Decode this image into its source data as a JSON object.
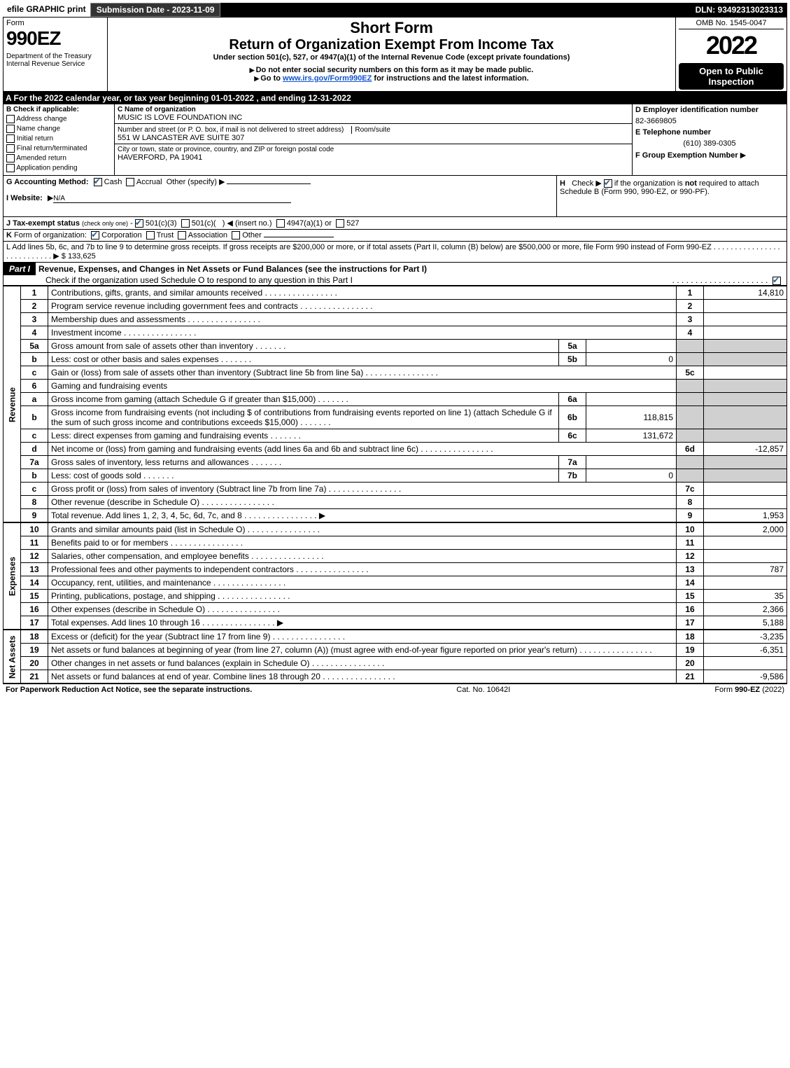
{
  "topbar": {
    "efile": "efile GRAPHIC print",
    "subdate": "Submission Date - 2023-11-09",
    "dln": "DLN: 93492313023313"
  },
  "header": {
    "form_word": "Form",
    "form_num": "990EZ",
    "dept": "Department of the Treasury\nInternal Revenue Service",
    "short_form": "Short Form",
    "title": "Return of Organization Exempt From Income Tax",
    "subtitle": "Under section 501(c), 527, or 4947(a)(1) of the Internal Revenue Code (except private foundations)",
    "notice1": "Do not enter social security numbers on this form as it may be made public.",
    "notice2": "Go to www.irs.gov/Form990EZ for instructions and the latest information.",
    "omb": "OMB No. 1545-0047",
    "year": "2022",
    "inspection": "Open to Public Inspection"
  },
  "sectionA": "A  For the 2022 calendar year, or tax year beginning 01-01-2022 , and ending 12-31-2022",
  "colB": {
    "label": "B  Check if applicable:",
    "items": [
      "Address change",
      "Name change",
      "Initial return",
      "Final return/terminated",
      "Amended return",
      "Application pending"
    ]
  },
  "colC": {
    "name_label": "C Name of organization",
    "name": "MUSIC IS LOVE FOUNDATION INC",
    "street_label": "Number and street (or P. O. box, if mail is not delivered to street address)",
    "room_label": "Room/suite",
    "street": "551 W LANCASTER AVE SUITE 307",
    "city_label": "City or town, state or province, country, and ZIP or foreign postal code",
    "city": "HAVERFORD, PA  19041"
  },
  "colD": {
    "ein_label": "D Employer identification number",
    "ein": "82-3669805",
    "tel_label": "E Telephone number",
    "tel": "(610) 389-0305",
    "group_label": "F Group Exemption Number"
  },
  "lineG": {
    "label": "G Accounting Method:",
    "cash": "Cash",
    "accrual": "Accrual",
    "other": "Other (specify)"
  },
  "lineH": "H   Check ▶     if the organization is not required to attach Schedule B (Form 990, 990-EZ, or 990-PF).",
  "lineI": {
    "label": "I Website:",
    "value": "N/A"
  },
  "lineJ": "J Tax-exempt status (check only one) -    501(c)(3)    501(c)(  ) ◀ (insert no.)    4947(a)(1) or    527",
  "lineK": "K Form of organization:    Corporation    Trust    Association    Other",
  "lineL": {
    "text": "L Add lines 5b, 6c, and 7b to line 9 to determine gross receipts. If gross receipts are $200,000 or more, or if total assets (Part II, column (B) below) are $500,000 or more, file Form 990 instead of Form 990-EZ",
    "value": "$ 133,625"
  },
  "partI": {
    "label": "Part I",
    "title": "Revenue, Expenses, and Changes in Net Assets or Fund Balances (see the instructions for Part I)",
    "check_o": "Check if the organization used Schedule O to respond to any question in this Part I"
  },
  "rows": [
    {
      "n": "1",
      "desc": "Contributions, gifts, grants, and similar amounts received",
      "rn": "1",
      "rv": "14,810"
    },
    {
      "n": "2",
      "desc": "Program service revenue including government fees and contracts",
      "rn": "2",
      "rv": ""
    },
    {
      "n": "3",
      "desc": "Membership dues and assessments",
      "rn": "3",
      "rv": ""
    },
    {
      "n": "4",
      "desc": "Investment income",
      "rn": "4",
      "rv": ""
    },
    {
      "n": "5a",
      "desc": "Gross amount from sale of assets other than inventory",
      "sl": "5a",
      "sv": "",
      "shaded": true
    },
    {
      "n": "b",
      "desc": "Less: cost or other basis and sales expenses",
      "sl": "5b",
      "sv": "0",
      "shaded": true
    },
    {
      "n": "c",
      "desc": "Gain or (loss) from sale of assets other than inventory (Subtract line 5b from line 5a)",
      "rn": "5c",
      "rv": ""
    },
    {
      "n": "6",
      "desc": "Gaming and fundraising events",
      "shaded": true
    },
    {
      "n": "a",
      "desc": "Gross income from gaming (attach Schedule G if greater than $15,000)",
      "sl": "6a",
      "sv": "",
      "shaded": true
    },
    {
      "n": "b",
      "desc": "Gross income from fundraising events (not including $                             of contributions from fundraising events reported on line 1) (attach Schedule G if the sum of such gross income and contributions exceeds $15,000)",
      "sl": "6b",
      "sv": "118,815",
      "shaded": true
    },
    {
      "n": "c",
      "desc": "Less: direct expenses from gaming and fundraising events",
      "sl": "6c",
      "sv": "131,672",
      "shaded": true
    },
    {
      "n": "d",
      "desc": "Net income or (loss) from gaming and fundraising events (add lines 6a and 6b and subtract line 6c)",
      "rn": "6d",
      "rv": "-12,857"
    },
    {
      "n": "7a",
      "desc": "Gross sales of inventory, less returns and allowances",
      "sl": "7a",
      "sv": "",
      "shaded": true
    },
    {
      "n": "b",
      "desc": "Less: cost of goods sold",
      "sl": "7b",
      "sv": "0",
      "shaded": true
    },
    {
      "n": "c",
      "desc": "Gross profit or (loss) from sales of inventory (Subtract line 7b from line 7a)",
      "rn": "7c",
      "rv": ""
    },
    {
      "n": "8",
      "desc": "Other revenue (describe in Schedule O)",
      "rn": "8",
      "rv": ""
    },
    {
      "n": "9",
      "desc": "Total revenue. Add lines 1, 2, 3, 4, 5c, 6d, 7c, and 8",
      "rn": "9",
      "rv": "1,953",
      "bold": true,
      "arrow": true
    }
  ],
  "exp_rows": [
    {
      "n": "10",
      "desc": "Grants and similar amounts paid (list in Schedule O)",
      "rn": "10",
      "rv": "2,000"
    },
    {
      "n": "11",
      "desc": "Benefits paid to or for members",
      "rn": "11",
      "rv": ""
    },
    {
      "n": "12",
      "desc": "Salaries, other compensation, and employee benefits",
      "rn": "12",
      "rv": ""
    },
    {
      "n": "13",
      "desc": "Professional fees and other payments to independent contractors",
      "rn": "13",
      "rv": "787"
    },
    {
      "n": "14",
      "desc": "Occupancy, rent, utilities, and maintenance",
      "rn": "14",
      "rv": ""
    },
    {
      "n": "15",
      "desc": "Printing, publications, postage, and shipping",
      "rn": "15",
      "rv": "35"
    },
    {
      "n": "16",
      "desc": "Other expenses (describe in Schedule O)",
      "rn": "16",
      "rv": "2,366"
    },
    {
      "n": "17",
      "desc": "Total expenses. Add lines 10 through 16",
      "rn": "17",
      "rv": "5,188",
      "bold": true,
      "arrow": true
    }
  ],
  "na_rows": [
    {
      "n": "18",
      "desc": "Excess or (deficit) for the year (Subtract line 17 from line 9)",
      "rn": "18",
      "rv": "-3,235"
    },
    {
      "n": "19",
      "desc": "Net assets or fund balances at beginning of year (from line 27, column (A)) (must agree with end-of-year figure reported on prior year's return)",
      "rn": "19",
      "rv": "-6,351"
    },
    {
      "n": "20",
      "desc": "Other changes in net assets or fund balances (explain in Schedule O)",
      "rn": "20",
      "rv": ""
    },
    {
      "n": "21",
      "desc": "Net assets or fund balances at end of year. Combine lines 18 through 20",
      "rn": "21",
      "rv": "-9,586"
    }
  ],
  "vert": {
    "revenue": "Revenue",
    "expenses": "Expenses",
    "netassets": "Net Assets"
  },
  "footer": {
    "left": "For Paperwork Reduction Act Notice, see the separate instructions.",
    "mid": "Cat. No. 10642I",
    "right": "Form 990-EZ (2022)"
  }
}
